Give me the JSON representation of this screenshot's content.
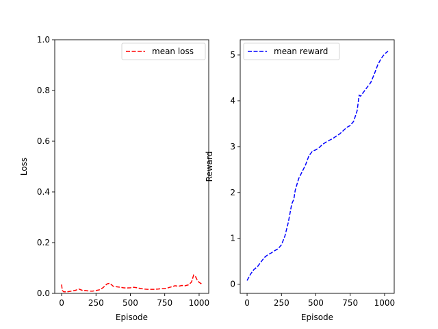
{
  "chart_data": [
    {
      "type": "line",
      "xlabel": "Episode",
      "ylabel": "Loss",
      "xlim": [
        -50,
        1070
      ],
      "ylim": [
        0,
        1.0
      ],
      "xticks": [
        0,
        250,
        500,
        750,
        1000
      ],
      "yticks": [
        0.0,
        0.2,
        0.4,
        0.6,
        0.8,
        1.0
      ],
      "xtick_labels": [
        "0",
        "250",
        "500",
        "750",
        "1000"
      ],
      "ytick_labels": [
        "0.0",
        "0.2",
        "0.4",
        "0.6",
        "0.8",
        "1.0"
      ],
      "legend_position": "upper-right",
      "grid": false,
      "series": [
        {
          "name": "mean loss",
          "color": "#ff0000",
          "linestyle": "dashed",
          "points": [
            [
              0,
              0.035
            ],
            [
              5,
              0.012
            ],
            [
              15,
              0.006
            ],
            [
              40,
              0.006
            ],
            [
              70,
              0.009
            ],
            [
              100,
              0.012
            ],
            [
              125,
              0.017
            ],
            [
              150,
              0.012
            ],
            [
              175,
              0.011
            ],
            [
              200,
              0.009
            ],
            [
              225,
              0.009
            ],
            [
              250,
              0.011
            ],
            [
              275,
              0.014
            ],
            [
              300,
              0.022
            ],
            [
              330,
              0.037
            ],
            [
              350,
              0.04
            ],
            [
              375,
              0.028
            ],
            [
              400,
              0.026
            ],
            [
              425,
              0.024
            ],
            [
              450,
              0.022
            ],
            [
              475,
              0.021
            ],
            [
              500,
              0.022
            ],
            [
              525,
              0.024
            ],
            [
              550,
              0.022
            ],
            [
              575,
              0.019
            ],
            [
              600,
              0.017
            ],
            [
              625,
              0.016
            ],
            [
              650,
              0.016
            ],
            [
              675,
              0.016
            ],
            [
              700,
              0.017
            ],
            [
              725,
              0.018
            ],
            [
              750,
              0.019
            ],
            [
              775,
              0.022
            ],
            [
              800,
              0.026
            ],
            [
              825,
              0.03
            ],
            [
              850,
              0.028
            ],
            [
              875,
              0.031
            ],
            [
              900,
              0.03
            ],
            [
              925,
              0.034
            ],
            [
              945,
              0.045
            ],
            [
              960,
              0.072
            ],
            [
              975,
              0.065
            ],
            [
              990,
              0.048
            ],
            [
              1010,
              0.04
            ],
            [
              1025,
              0.035
            ]
          ]
        }
      ]
    },
    {
      "type": "line",
      "xlabel": "Episode",
      "ylabel": "Reward",
      "xlim": [
        -50,
        1070
      ],
      "ylim": [
        -0.2,
        5.33
      ],
      "xticks": [
        0,
        250,
        500,
        750,
        1000
      ],
      "yticks": [
        0,
        1,
        2,
        3,
        4,
        5
      ],
      "xtick_labels": [
        "0",
        "250",
        "500",
        "750",
        "1000"
      ],
      "ytick_labels": [
        "0",
        "1",
        "2",
        "3",
        "4",
        "5"
      ],
      "legend_position": "upper-left",
      "grid": false,
      "series": [
        {
          "name": "mean reward",
          "color": "#0000ff",
          "linestyle": "dashed",
          "points": [
            [
              0,
              0.08
            ],
            [
              25,
              0.22
            ],
            [
              50,
              0.32
            ],
            [
              75,
              0.38
            ],
            [
              100,
              0.48
            ],
            [
              125,
              0.58
            ],
            [
              150,
              0.64
            ],
            [
              175,
              0.68
            ],
            [
              200,
              0.73
            ],
            [
              225,
              0.77
            ],
            [
              250,
              0.86
            ],
            [
              275,
              1.05
            ],
            [
              300,
              1.35
            ],
            [
              325,
              1.75
            ],
            [
              340,
              1.85
            ],
            [
              350,
              2.05
            ],
            [
              375,
              2.3
            ],
            [
              400,
              2.45
            ],
            [
              425,
              2.6
            ],
            [
              450,
              2.8
            ],
            [
              475,
              2.9
            ],
            [
              500,
              2.93
            ],
            [
              525,
              2.98
            ],
            [
              550,
              3.05
            ],
            [
              575,
              3.1
            ],
            [
              600,
              3.14
            ],
            [
              625,
              3.18
            ],
            [
              650,
              3.23
            ],
            [
              675,
              3.28
            ],
            [
              700,
              3.35
            ],
            [
              725,
              3.42
            ],
            [
              750,
              3.46
            ],
            [
              775,
              3.55
            ],
            [
              800,
              3.78
            ],
            [
              815,
              4.12
            ],
            [
              825,
              4.1
            ],
            [
              850,
              4.2
            ],
            [
              875,
              4.3
            ],
            [
              900,
              4.4
            ],
            [
              925,
              4.58
            ],
            [
              950,
              4.78
            ],
            [
              975,
              4.92
            ],
            [
              1000,
              5.02
            ],
            [
              1025,
              5.08
            ]
          ]
        }
      ]
    }
  ]
}
